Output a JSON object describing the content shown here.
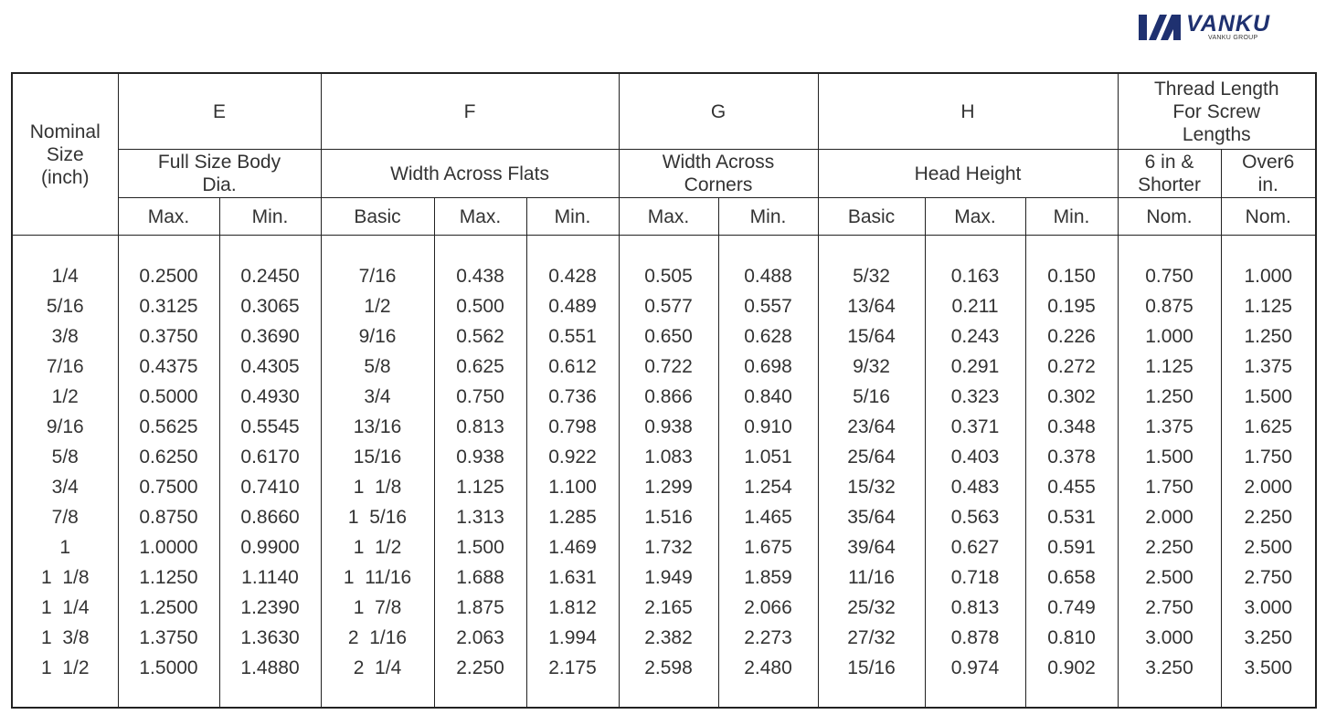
{
  "logo": {
    "name": "VANKU",
    "sub": "VANKU GROUP",
    "brand_color": "#1f3170"
  },
  "header": {
    "nominal": "Nominal\nSize\n(inch)",
    "E": "E",
    "F": "F",
    "G": "G",
    "H": "H",
    "thread": "Thread Length\nFor Screw\nLengths",
    "E_desc": "Full Size Body\nDia.",
    "F_desc": "Width Across Flats",
    "G_desc": "Width Across\nCorners",
    "H_desc": "Head Height",
    "thread_short": "6 in &\nShorter",
    "thread_over": "Over6\nin.",
    "sub": [
      "Max.",
      "Min.",
      "Basic",
      "Max.",
      "Min.",
      "Max.",
      "Min.",
      "Basic",
      "Max.",
      "Min.",
      "Nom.",
      "Nom."
    ]
  },
  "rows": [
    [
      "1/4",
      "0.2500",
      "0.2450",
      "7/16",
      "0.438",
      "0.428",
      "0.505",
      "0.488",
      "5/32",
      "0.163",
      "0.150",
      "0.750",
      "1.000"
    ],
    [
      "5/16",
      "0.3125",
      "0.3065",
      "1/2",
      "0.500",
      "0.489",
      "0.577",
      "0.557",
      "13/64",
      "0.211",
      "0.195",
      "0.875",
      "1.125"
    ],
    [
      "3/8",
      "0.3750",
      "0.3690",
      "9/16",
      "0.562",
      "0.551",
      "0.650",
      "0.628",
      "15/64",
      "0.243",
      "0.226",
      "1.000",
      "1.250"
    ],
    [
      "7/16",
      "0.4375",
      "0.4305",
      "5/8",
      "0.625",
      "0.612",
      "0.722",
      "0.698",
      "9/32",
      "0.291",
      "0.272",
      "1.125",
      "1.375"
    ],
    [
      "1/2",
      "0.5000",
      "0.4930",
      "3/4",
      "0.750",
      "0.736",
      "0.866",
      "0.840",
      "5/16",
      "0.323",
      "0.302",
      "1.250",
      "1.500"
    ],
    [
      "9/16",
      "0.5625",
      "0.5545",
      "13/16",
      "0.813",
      "0.798",
      "0.938",
      "0.910",
      "23/64",
      "0.371",
      "0.348",
      "1.375",
      "1.625"
    ],
    [
      "5/8",
      "0.6250",
      "0.6170",
      "15/16",
      "0.938",
      "0.922",
      "1.083",
      "1.051",
      "25/64",
      "0.403",
      "0.378",
      "1.500",
      "1.750"
    ],
    [
      "3/4",
      "0.7500",
      "0.7410",
      "1  1/8",
      "1.125",
      "1.100",
      "1.299",
      "1.254",
      "15/32",
      "0.483",
      "0.455",
      "1.750",
      "2.000"
    ],
    [
      "7/8",
      "0.8750",
      "0.8660",
      "1  5/16",
      "1.313",
      "1.285",
      "1.516",
      "1.465",
      "35/64",
      "0.563",
      "0.531",
      "2.000",
      "2.250"
    ],
    [
      "1",
      "1.0000",
      "0.9900",
      "1  1/2",
      "1.500",
      "1.469",
      "1.732",
      "1.675",
      "39/64",
      "0.627",
      "0.591",
      "2.250",
      "2.500"
    ],
    [
      "1  1/8",
      "1.1250",
      "1.1140",
      "1  11/16",
      "1.688",
      "1.631",
      "1.949",
      "1.859",
      "11/16",
      "0.718",
      "0.658",
      "2.500",
      "2.750"
    ],
    [
      "1  1/4",
      "1.2500",
      "1.2390",
      "1  7/8",
      "1.875",
      "1.812",
      "2.165",
      "2.066",
      "25/32",
      "0.813",
      "0.749",
      "2.750",
      "3.000"
    ],
    [
      "1  3/8",
      "1.3750",
      "1.3630",
      "2  1/16",
      "2.063",
      "1.994",
      "2.382",
      "2.273",
      "27/32",
      "0.878",
      "0.810",
      "3.000",
      "3.250"
    ],
    [
      "1  1/2",
      "1.5000",
      "1.4880",
      "2  1/4",
      "2.250",
      "2.175",
      "2.598",
      "2.480",
      "15/16",
      "0.974",
      "0.902",
      "3.250",
      "3.500"
    ]
  ]
}
